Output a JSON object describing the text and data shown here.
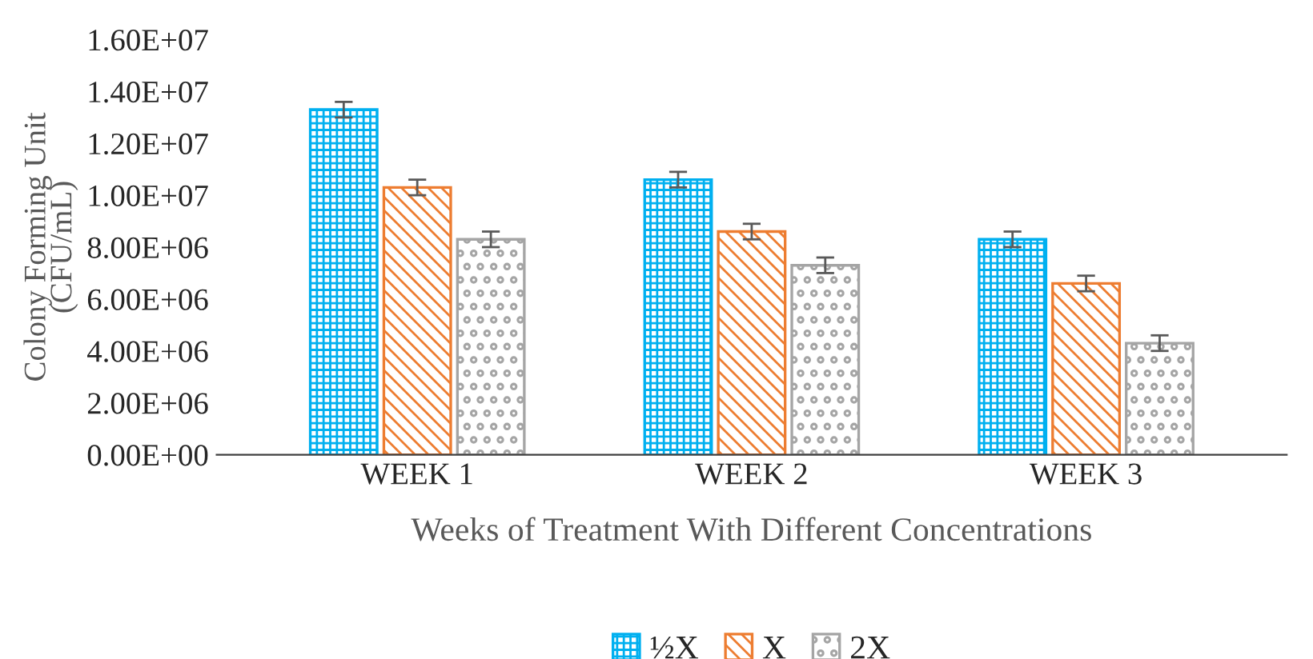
{
  "chart_data": {
    "type": "bar",
    "xlabel": "Weeks of Treatment With Different Concentrations",
    "ylabel": "Colony Forming Unit\n(CFU/mL)",
    "categories": [
      "WEEK 1",
      "WEEK 2",
      "WEEK 3"
    ],
    "series": [
      {
        "name": "½X",
        "color": "#00b0f0",
        "values": [
          13300000,
          10600000,
          8300000
        ],
        "errors": [
          300000,
          300000,
          300000
        ]
      },
      {
        "name": "X",
        "color": "#ed7d31",
        "values": [
          10300000,
          8600000,
          6600000
        ],
        "errors": [
          300000,
          300000,
          300000
        ]
      },
      {
        "name": "2X",
        "color": "#a5a5a5",
        "values": [
          8300000,
          7300000,
          4300000
        ],
        "errors": [
          300000,
          300000,
          300000
        ]
      }
    ],
    "ylim": [
      0,
      16000000
    ],
    "yticks": [
      {
        "value": 0,
        "label": "0.00E+00"
      },
      {
        "value": 2000000,
        "label": "2.00E+06"
      },
      {
        "value": 4000000,
        "label": "4.00E+06"
      },
      {
        "value": 6000000,
        "label": "6.00E+06"
      },
      {
        "value": 8000000,
        "label": "8.00E+06"
      },
      {
        "value": 10000000,
        "label": "1.00E+07"
      },
      {
        "value": 12000000,
        "label": "1.20E+07"
      },
      {
        "value": 14000000,
        "label": "1.40E+07"
      },
      {
        "value": 16000000,
        "label": "1.60E+07"
      }
    ],
    "grid": false,
    "legend": "bottom"
  }
}
